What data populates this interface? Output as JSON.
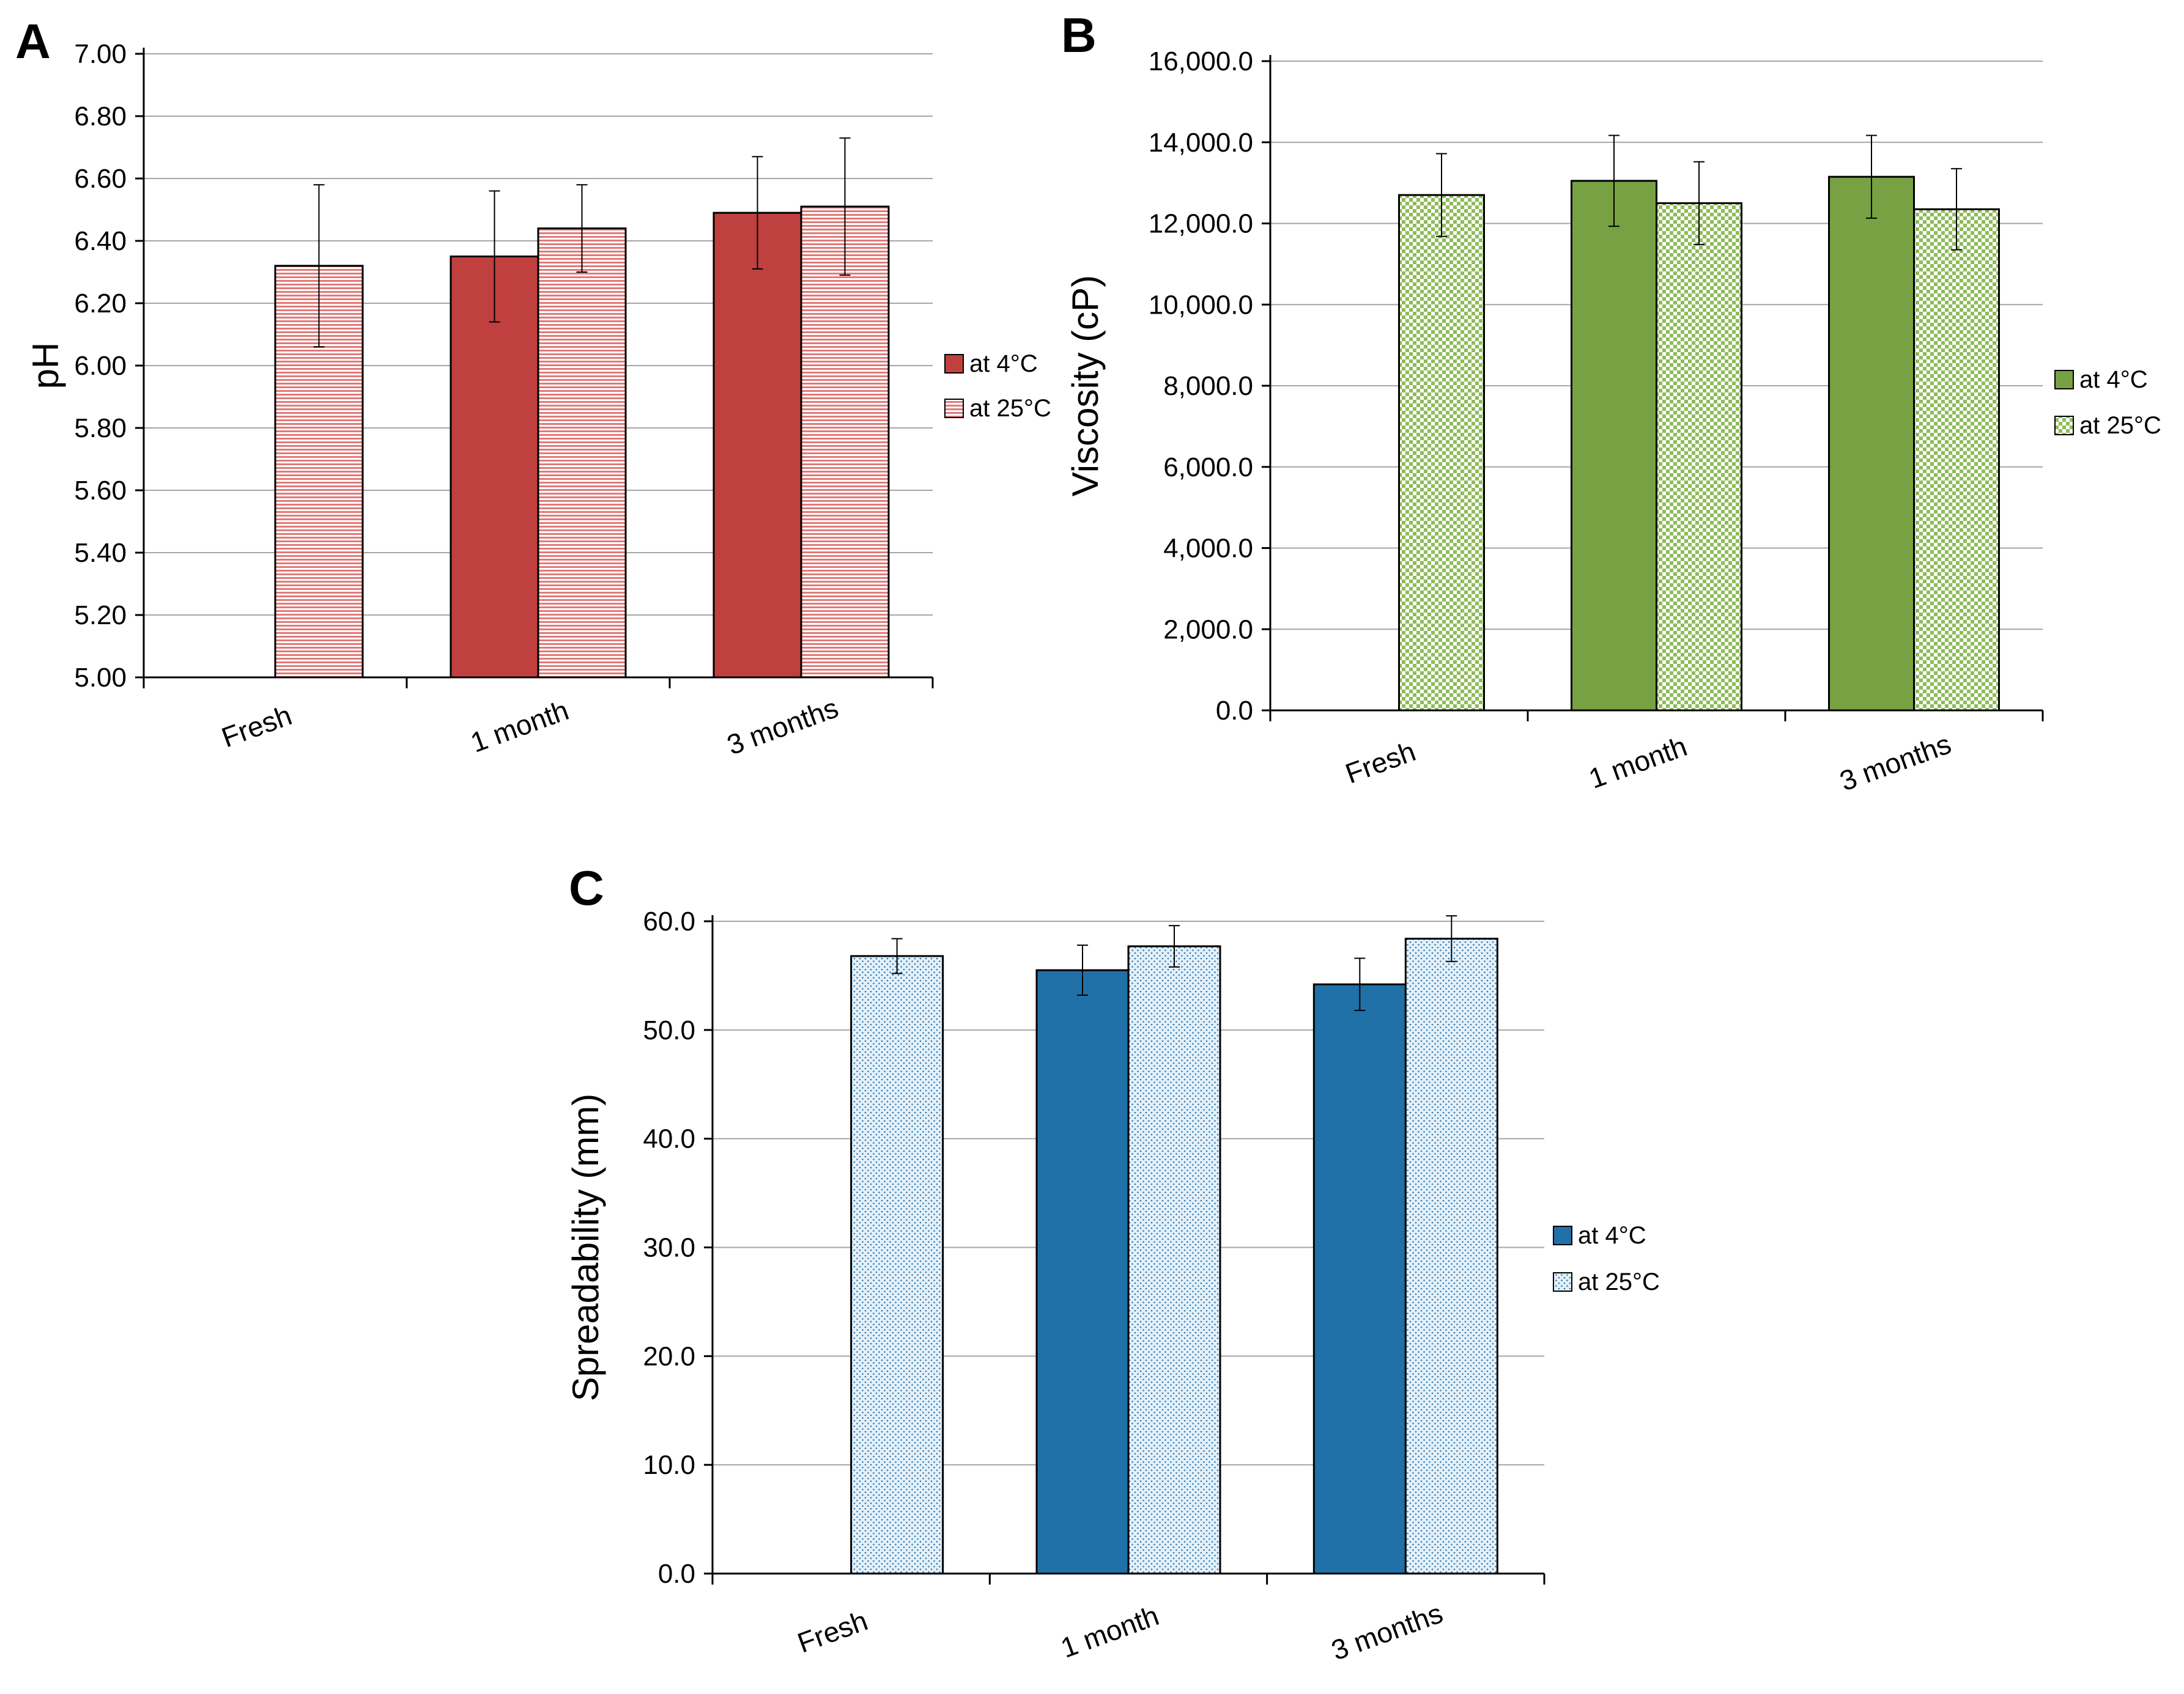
{
  "chart_data": [
    {
      "panel": "A",
      "type": "bar",
      "categories": [
        "Fresh",
        "1 month",
        "3 months"
      ],
      "ylabel": "pH",
      "xlabel": "",
      "ylim": [
        5.0,
        7.0
      ],
      "ytick_step": 0.2,
      "ytick_decimals": 2,
      "ytick_labels": [
        "5.00",
        "5.20",
        "5.40",
        "5.60",
        "5.80",
        "6.00",
        "6.20",
        "6.40",
        "6.60",
        "6.80",
        "7.00"
      ],
      "legend_position": "right",
      "pattern": "horizontal-lines",
      "series": [
        {
          "name": "at 4°C",
          "color": "#c0403f",
          "values": [
            null,
            6.35,
            6.49
          ],
          "errors": [
            null,
            0.21,
            0.18
          ]
        },
        {
          "name": "at 25°C",
          "color": "#c0403f",
          "fill": "pattern",
          "values": [
            6.32,
            6.44,
            6.51
          ],
          "errors": [
            0.26,
            0.14,
            0.22
          ]
        }
      ]
    },
    {
      "panel": "B",
      "type": "bar",
      "categories": [
        "Fresh",
        "1 month",
        "3 months"
      ],
      "ylabel": "Viscosity (cP)",
      "xlabel": "",
      "ylim": [
        0,
        16000
      ],
      "ytick_step": 2000,
      "ytick_decimals": 1,
      "ytick_labels": [
        "0.0",
        "2,000.0",
        "4,000.0",
        "6,000.0",
        "8,000.0",
        "10,000.0",
        "12,000.0",
        "14,000.0",
        "16,000.0"
      ],
      "legend_position": "right",
      "pattern": "checkerboard",
      "series": [
        {
          "name": "at 4°C",
          "color": "#77a142",
          "values": [
            null,
            13050,
            13150
          ],
          "errors": [
            null,
            1120,
            1020
          ]
        },
        {
          "name": "at 25°C",
          "color": "#77a142",
          "fill": "pattern",
          "values": [
            12700,
            12500,
            12350
          ],
          "errors": [
            1020,
            1020,
            1000
          ]
        }
      ]
    },
    {
      "panel": "C",
      "type": "bar",
      "categories": [
        "Fresh",
        "1 month",
        "3 months"
      ],
      "ylabel": "Spreadability (mm)",
      "xlabel": "",
      "ylim": [
        0,
        60
      ],
      "ytick_step": 10,
      "ytick_decimals": 1,
      "ytick_labels": [
        "0.0",
        "10.0",
        "20.0",
        "30.0",
        "40.0",
        "50.0",
        "60.0"
      ],
      "legend_position": "right",
      "pattern": "dots",
      "series": [
        {
          "name": "at 4°C",
          "color": "#1f71a8",
          "values": [
            null,
            55.5,
            54.2
          ],
          "errors": [
            null,
            2.3,
            2.4
          ]
        },
        {
          "name": "at 25°C",
          "color": "#1f71a8",
          "fill": "pattern",
          "values": [
            56.8,
            57.7,
            58.4
          ],
          "errors": [
            1.6,
            1.9,
            2.1
          ]
        }
      ]
    }
  ]
}
